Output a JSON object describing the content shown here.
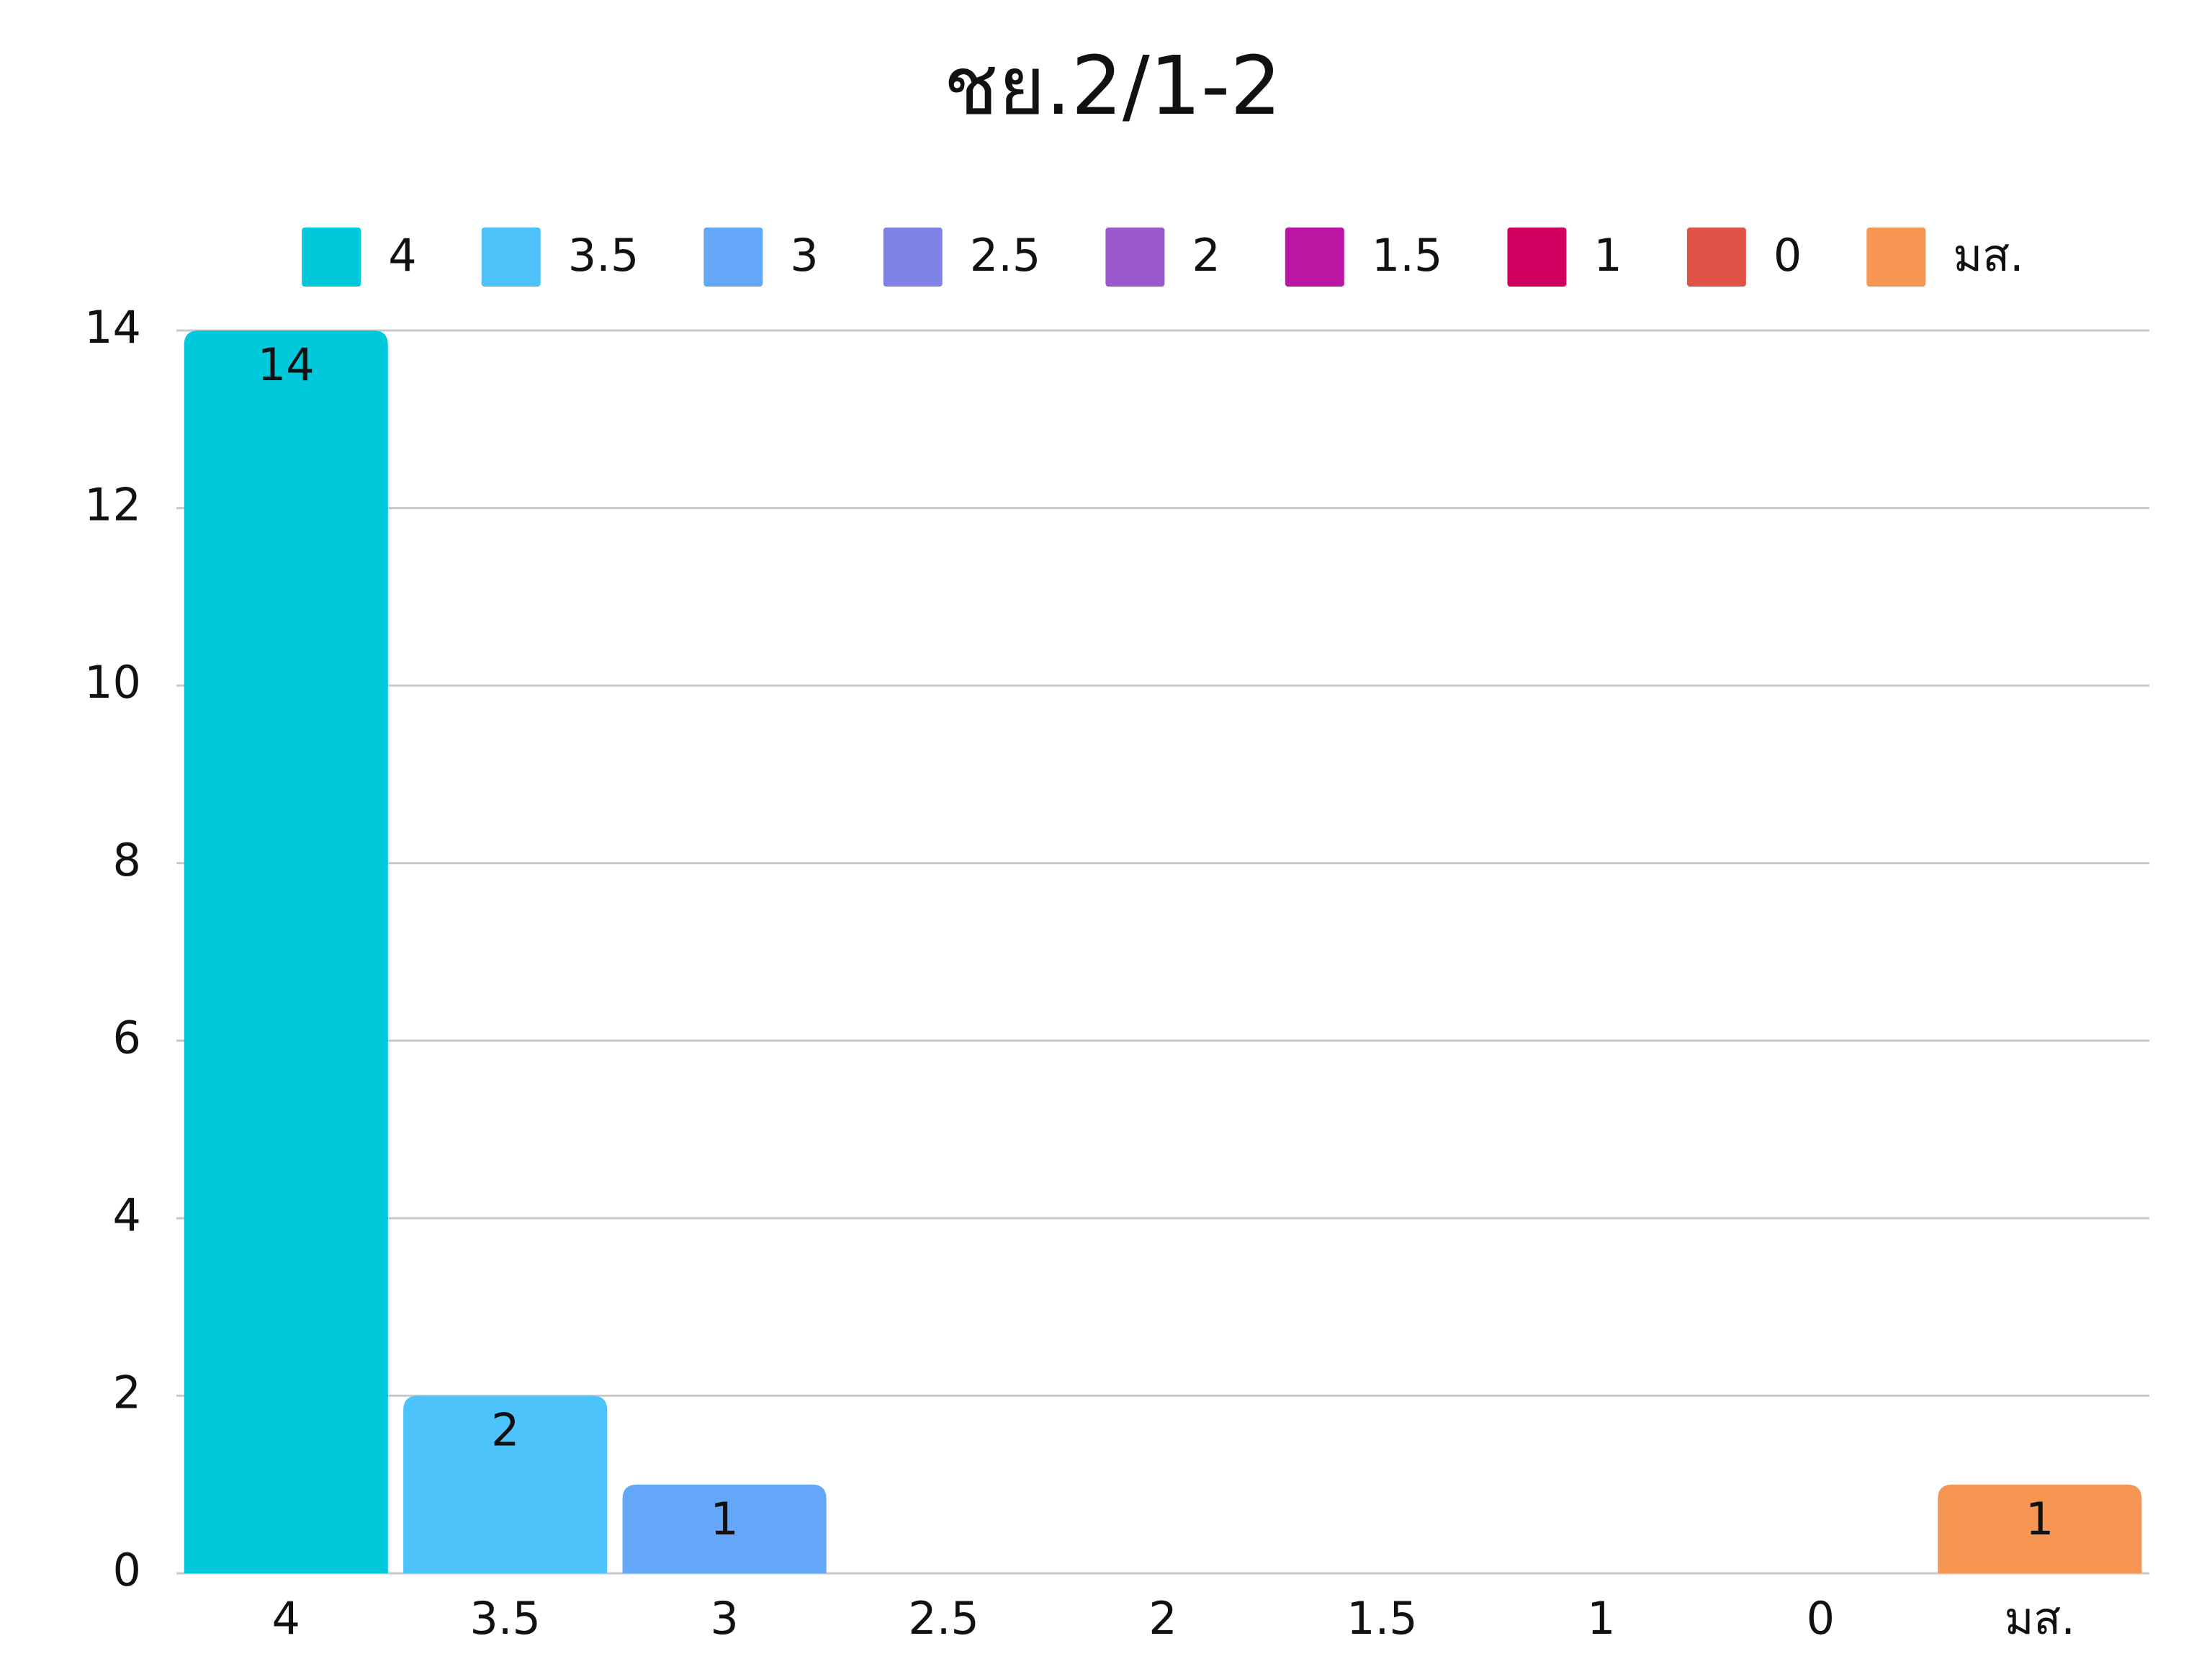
{
  "chart_data": {
    "type": "bar",
    "title": "ชย.2/1-2",
    "categories": [
      "4",
      "3.5",
      "3",
      "2.5",
      "2",
      "1.5",
      "1",
      "0",
      "มส."
    ],
    "values": [
      14,
      2,
      1,
      0,
      0,
      0,
      0,
      0,
      1
    ],
    "colors": [
      "#00c9db",
      "#4cc4fb",
      "#64a7f8",
      "#7f83e8",
      "#9a59cc",
      "#bb16a3",
      "#d0005e",
      "#e05447",
      "#f79552"
    ],
    "ylim": [
      0,
      14
    ],
    "yticks": [
      0,
      2,
      4,
      6,
      8,
      10,
      12,
      14
    ],
    "grid": true,
    "legend": "top"
  }
}
